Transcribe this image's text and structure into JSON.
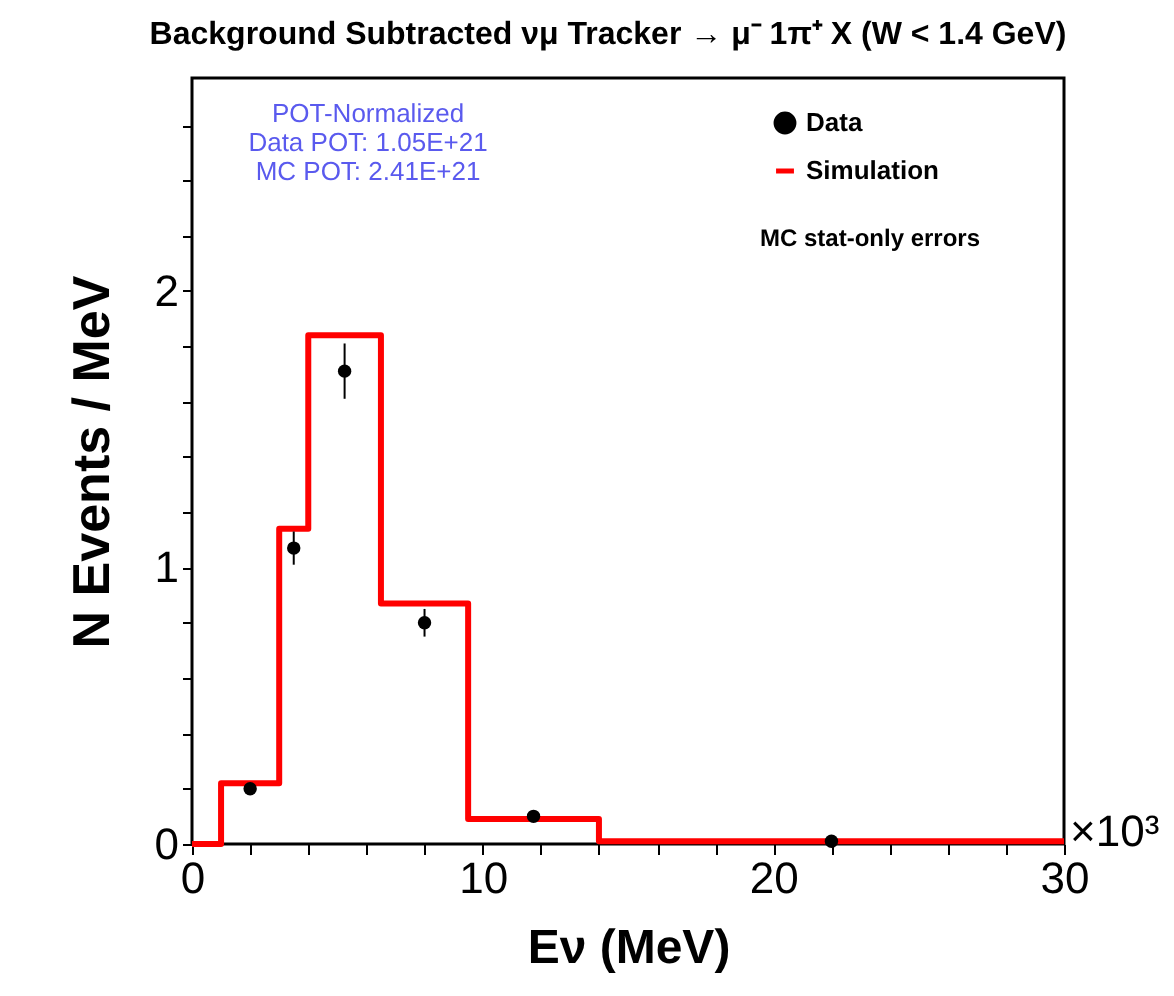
{
  "chart_data": {
    "type": "histogram",
    "title": "Background Subtracted νμ Tracker → μ⁻ 1π⁺ X  (W < 1.4 GeV)",
    "xlabel": "Eν (MeV)",
    "ylabel": "N Events / MeV",
    "xlim": [
      0,
      30
    ],
    "ylim": [
      0,
      2.77
    ],
    "xticks": [
      0,
      {
        "value": 2,
        "label": null
      },
      {
        "value": 4,
        "label": null
      },
      {
        "value": 6,
        "label": null
      },
      {
        "value": 8,
        "label": null
      },
      10,
      {
        "value": 12,
        "label": null
      },
      {
        "value": 14,
        "label": null
      },
      {
        "value": 16,
        "label": null
      },
      {
        "value": 18,
        "label": null
      },
      20,
      {
        "value": 22,
        "label": null
      },
      {
        "value": 24,
        "label": null
      },
      {
        "value": 26,
        "label": null
      },
      {
        "value": 28,
        "label": null
      },
      30
    ],
    "yticks": [
      0,
      {
        "value": 0.2,
        "label": null
      },
      {
        "value": 0.4,
        "label": null
      },
      {
        "value": 0.6,
        "label": null
      },
      {
        "value": 0.8,
        "label": null
      },
      1,
      {
        "value": 1.2,
        "label": null
      },
      {
        "value": 1.4,
        "label": null
      },
      {
        "value": 1.6,
        "label": null
      },
      {
        "value": 1.8,
        "label": null
      },
      2,
      {
        "value": 2.2,
        "label": null
      },
      {
        "value": 2.4,
        "label": null
      },
      {
        "value": 2.6,
        "label": null
      }
    ],
    "series": [
      {
        "name": "Data",
        "type": "scatter",
        "color": "#000000",
        "marker": "circle",
        "x": [
          2,
          3.5,
          5.25,
          8,
          11.75,
          22
        ],
        "values": [
          0.2,
          1.07,
          1.71,
          0.8,
          0.1,
          0.01
        ],
        "errors": [
          null,
          0.06,
          0.1,
          0.05,
          null,
          null
        ]
      },
      {
        "name": "Simulation",
        "color": "#ff0000",
        "bins": [
          0,
          1,
          3,
          4,
          6.5,
          9.5,
          14,
          30
        ],
        "values": [
          0,
          0.22,
          1.14,
          1.84,
          0.87,
          0.09,
          0.01
        ]
      }
    ],
    "legend": "top right",
    "grid": false,
    "annotations": [
      "POT-Normalized",
      "Data POT: 1.05E+21",
      "MC POT: 2.41E+21",
      "MC stat-only errors",
      "×10³"
    ]
  }
}
